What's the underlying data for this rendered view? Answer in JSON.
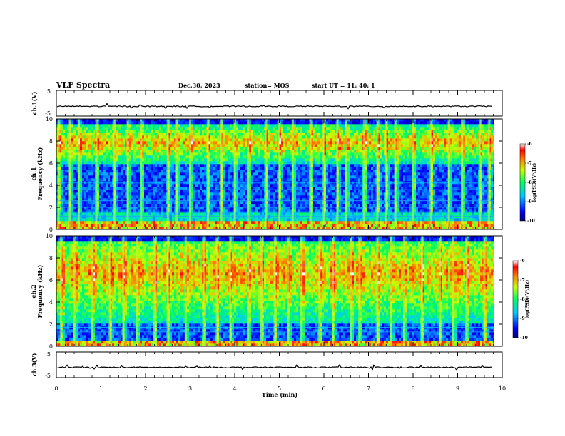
{
  "header": {
    "title": "VLF Spectra",
    "date": "Dec.30, 2023",
    "station": "station= MOS",
    "start": "start  UT =   11: 40: 1"
  },
  "chart_data": [
    {
      "type": "line",
      "name": "ch1-waveform",
      "ylabel": "ch.1(V)",
      "ylim": [
        -5,
        5
      ],
      "yticks": [
        "5",
        "-5"
      ],
      "xlim": [
        0,
        10
      ],
      "baseline": -1.2
    },
    {
      "type": "heatmap",
      "name": "ch1-spectrogram",
      "ylabel": "ch.1\nFrequency (kHz)",
      "ylim": [
        0,
        10
      ],
      "yticks": [
        "0",
        "2",
        "4",
        "6",
        "8",
        "10"
      ],
      "xlim": [
        0,
        9.85
      ],
      "colorbar": {
        "label": "log(PSD)(V²/Hz)",
        "range": [
          -10,
          -6
        ],
        "ticks": [
          "-6",
          "-7",
          "-8",
          "-9",
          "-10"
        ]
      },
      "band_kHz": {
        "active_low": 6.0,
        "active_high": 9.5,
        "dark_low": 1.3,
        "dark_high": 5.8,
        "strong_near_0": 0.6,
        "lines": [
          1.2,
          1.6,
          2.0,
          2.3,
          2.6,
          3.2,
          3.6,
          4.2
        ]
      },
      "burst_times_min": [
        0.05,
        0.3,
        0.5,
        0.9,
        1.3,
        1.6,
        1.9,
        2.5,
        2.7,
        3.0,
        3.4,
        3.7,
        4.0,
        4.3,
        4.7,
        5.0,
        5.3,
        5.7,
        6.0,
        6.3,
        6.5,
        6.9,
        7.2,
        7.4,
        7.6,
        8.0,
        8.4,
        8.8,
        9.1,
        9.5,
        9.7
      ]
    },
    {
      "type": "heatmap",
      "name": "ch2-spectrogram",
      "ylabel": "ch.2\nFrequency (kHz)",
      "ylim": [
        0,
        10
      ],
      "yticks": [
        "0",
        "2",
        "4",
        "6",
        "8",
        "10"
      ],
      "xlim": [
        0,
        9.85
      ],
      "colorbar": {
        "label": "log(PSD)(V²/Hz)",
        "range": [
          -10,
          -6
        ],
        "ticks": [
          "-6",
          "-7",
          "-8",
          "-9",
          "-10"
        ]
      },
      "band_kHz": {
        "active_low": 2.0,
        "active_high": 9.5,
        "dark_low": 0.5,
        "dark_high": 2.0,
        "strong_near_0": 0.4,
        "lines": [
          1.3,
          1.7
        ]
      },
      "burst_times_min": [
        0.1,
        0.4,
        0.8,
        1.2,
        1.5,
        1.8,
        2.2,
        2.5,
        2.9,
        3.3,
        3.6,
        3.9,
        4.3,
        4.6,
        4.9,
        5.2,
        5.5,
        5.9,
        6.2,
        6.6,
        6.8,
        7.2,
        7.5,
        7.8,
        8.2,
        8.6,
        8.9,
        9.2,
        9.6
      ]
    },
    {
      "type": "line",
      "name": "ch3-waveform",
      "ylabel": "ch.3(V)",
      "ylim": [
        -5,
        5
      ],
      "yticks": [
        "5",
        "-5"
      ],
      "xlim": [
        0,
        10
      ],
      "baseline": -1.0
    }
  ],
  "xaxis": {
    "label": "Time (min)",
    "ticks": [
      "0",
      "1",
      "2",
      "3",
      "4",
      "5",
      "6",
      "7",
      "8",
      "9",
      "10"
    ]
  }
}
